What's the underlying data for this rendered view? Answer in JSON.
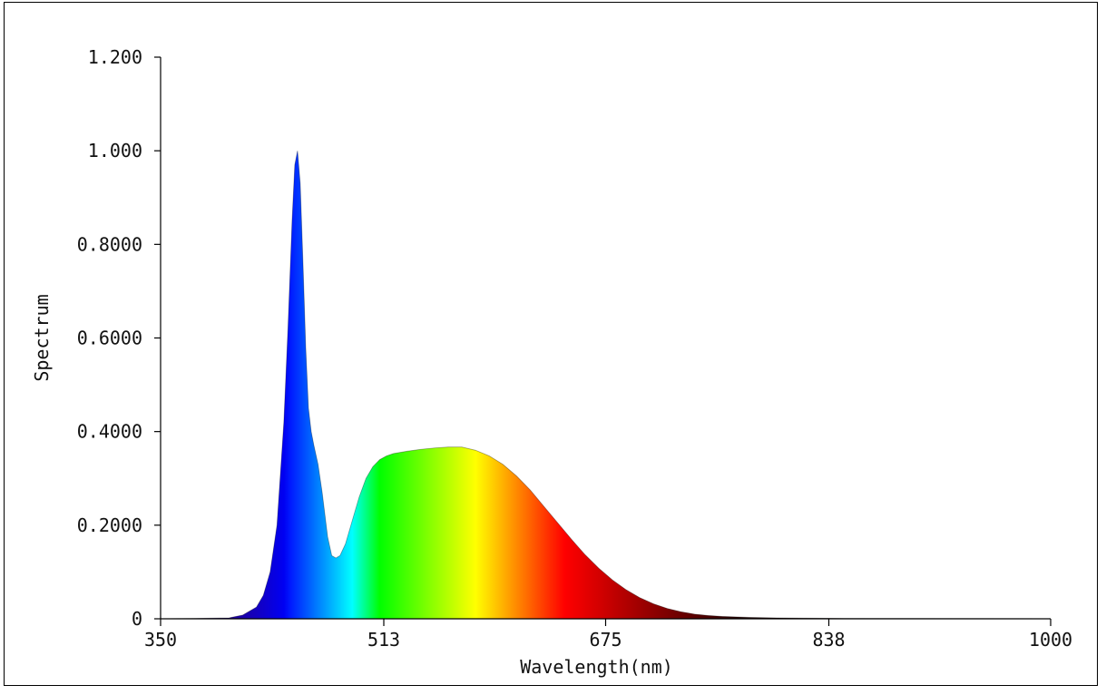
{
  "chart_data": {
    "type": "area",
    "xlabel": "Wavelength(nm)",
    "ylabel": "Spectrum",
    "xlim": [
      350,
      1000
    ],
    "ylim": [
      0,
      1.2
    ],
    "xticks": [
      350,
      513,
      675,
      838,
      1000
    ],
    "xtick_labels": [
      "350",
      "513",
      "675",
      "838",
      "1000"
    ],
    "yticks": [
      0,
      0.2,
      0.4,
      0.6,
      0.8,
      1.0,
      1.2
    ],
    "ytick_labels": [
      "0",
      "0.2000",
      "0.4000",
      "0.6000",
      "0.8000",
      "1.000",
      "1.200"
    ],
    "fill": "spectral-color-gradient",
    "grid": false,
    "series": [
      {
        "x": [
          350,
          400,
          410,
          420,
          425,
          430,
          435,
          440,
          443,
          446,
          448,
          450,
          452,
          454,
          456,
          458,
          460,
          462,
          465,
          468,
          472,
          475,
          478,
          481,
          485,
          490,
          495,
          500,
          505,
          510,
          515,
          520,
          530,
          540,
          550,
          560,
          570,
          580,
          590,
          600,
          610,
          620,
          630,
          640,
          650,
          660,
          670,
          680,
          690,
          700,
          710,
          720,
          730,
          740,
          750,
          760,
          780,
          800,
          820,
          850,
          900,
          950,
          1000
        ],
        "y": [
          0.0,
          0.002,
          0.008,
          0.025,
          0.05,
          0.1,
          0.2,
          0.42,
          0.62,
          0.85,
          0.97,
          1.0,
          0.93,
          0.76,
          0.58,
          0.45,
          0.4,
          0.37,
          0.33,
          0.27,
          0.175,
          0.135,
          0.13,
          0.135,
          0.16,
          0.21,
          0.26,
          0.3,
          0.325,
          0.34,
          0.348,
          0.353,
          0.358,
          0.362,
          0.365,
          0.367,
          0.367,
          0.36,
          0.348,
          0.33,
          0.305,
          0.275,
          0.24,
          0.205,
          0.17,
          0.137,
          0.108,
          0.083,
          0.062,
          0.045,
          0.032,
          0.022,
          0.015,
          0.01,
          0.007,
          0.005,
          0.003,
          0.002,
          0.0015,
          0.001,
          0.0008,
          0.0005,
          0.0
        ]
      }
    ]
  }
}
